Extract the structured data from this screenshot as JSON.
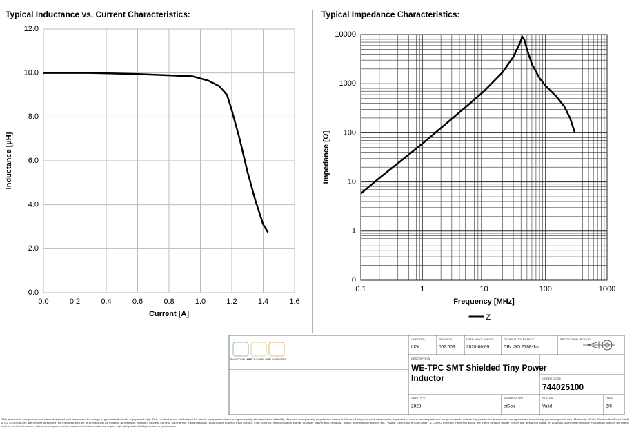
{
  "chart_data": [
    {
      "type": "line",
      "title": "Typical Inductance vs. Current Characteristics:",
      "x_label": "Current [A]",
      "y_label": "Inductance [µH]",
      "x": [
        0,
        0.3,
        0.6,
        0.95,
        1.05,
        1.12,
        1.17,
        1.2,
        1.25,
        1.3,
        1.35,
        1.4,
        1.43
      ],
      "series": [
        {
          "color": "#000000",
          "values": [
            10,
            10,
            9.95,
            9.85,
            9.65,
            9.4,
            9.0,
            8.3,
            7.0,
            5.5,
            4.2,
            3.1,
            2.75
          ]
        }
      ],
      "xlim": [
        0,
        1.6
      ],
      "ylim": [
        0,
        12
      ],
      "xticks": [
        {
          "value": 0,
          "label": "0.0"
        },
        {
          "value": 0.2,
          "label": "0.2"
        },
        {
          "value": 0.4,
          "label": "0.4"
        },
        {
          "value": 0.6,
          "label": "0.6"
        },
        {
          "value": 0.8,
          "label": "0.8"
        },
        {
          "value": 1,
          "label": "1.0"
        },
        {
          "value": 1.2,
          "label": "1.2"
        },
        {
          "value": 1.4,
          "label": "1.4"
        },
        {
          "value": 1.6,
          "label": "1.6"
        }
      ],
      "yticks": [
        {
          "value": 0,
          "label": "0.0"
        },
        {
          "value": 2,
          "label": "2.0"
        },
        {
          "value": 4,
          "label": "4.0"
        },
        {
          "value": 6,
          "label": "6.0"
        },
        {
          "value": 8,
          "label": "8.0"
        },
        {
          "value": 10,
          "label": "10.0"
        },
        {
          "value": 12,
          "label": "12.0"
        }
      ],
      "grid": true,
      "log_x": false,
      "log_y": false
    },
    {
      "type": "line",
      "title": "Typical Impedance Characteristics:",
      "x_label": "Frequency [MHz]",
      "y_label": "Impedance [Ω]",
      "x": [
        0.1,
        0.2,
        0.5,
        1,
        2,
        5,
        10,
        20,
        30,
        38,
        42,
        45,
        50,
        60,
        80,
        100,
        150,
        200,
        250,
        300
      ],
      "series": [
        {
          "name": "Z",
          "color": "#000000",
          "values": [
            5.8,
            12,
            30,
            60,
            125,
            330,
            700,
            1700,
            3500,
            6500,
            9000,
            8000,
            5000,
            2500,
            1300,
            900,
            550,
            350,
            200,
            100
          ]
        }
      ],
      "xlim": [
        0.1,
        1000
      ],
      "ylim": [
        0.1,
        10000
      ],
      "xticks": [
        0.1,
        1,
        10,
        100,
        1000
      ],
      "yticks": [
        {
          "value": 0.1,
          "label": "0"
        },
        1,
        10,
        100,
        1000,
        10000
      ],
      "grid": true,
      "log_x": true,
      "log_y": true,
      "legend": "bottom"
    }
  ],
  "title_block": {
    "logos": [
      "RoHS COMPLIANT",
      "REACH COMPLIANT",
      "HALOGEN FREE"
    ],
    "fields": [
      [
        "CHECKED",
        "LiGt"
      ],
      [
        "REVISION",
        "002.003"
      ],
      [
        "DATE (YYYY-MM-DD)",
        "2020-06-09"
      ],
      [
        "GENERAL TOLERANCE",
        "DIN ISO 2768-1m"
      ],
      [
        "PROJECTION METHOD",
        ""
      ]
    ],
    "description_label": "DESCRIPTION",
    "description": [
      "WE-TPC SMT Shielded Tiny Power",
      "Inductor"
    ],
    "order_code_label": "ORDER CODE",
    "order_code": "744025100",
    "bottom": [
      [
        "SIZE/TYPE",
        "2828"
      ],
      [
        "BUSINESS UNIT",
        "eiSos"
      ],
      [
        "STATUS",
        "Valid"
      ],
      [
        "PAGE",
        "2/6"
      ]
    ]
  },
  "disclaimer": [
    "This electronic component has been designed and developed for usage in general electronic equipment only. This product is not authorized for use in equipment where a higher safety standard and reliability standard is especially required or where a failure of the product is reasonably expected to cause severe personal injury or death, unless the parties have executed an agreement specifically governing such use. Moreover Würth Elektronik eiSos GmbH",
    "& Co KG products are neither designed nor intended for use in areas such as military, aerospace, aviation, nuclear control, submarine, transportation (automotive control, train control, ship control), transportation signal, disaster prevention, medical, public information network etc.. Würth Elektronik eiSos GmbH & Co KG must be informed about the intent of such usage before the design-in stage. In addition, sufficient reliability evaluation checks for safety",
    "must be performed on every electronic component which is used in electrical circuits that require high safety and reliability functions or performance."
  ]
}
